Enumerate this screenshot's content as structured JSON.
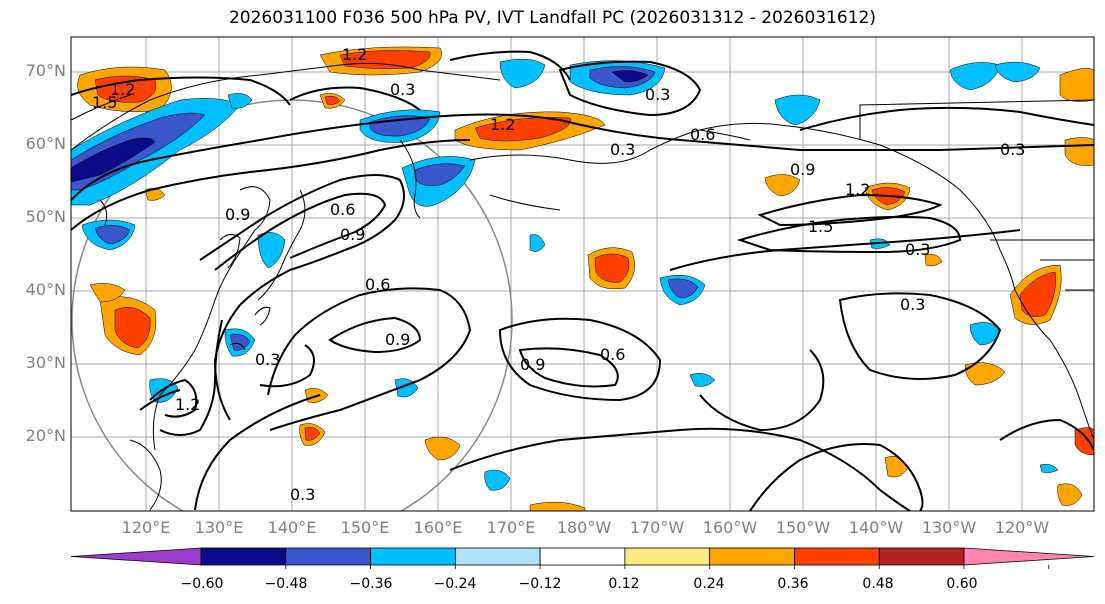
{
  "title": "2026031100 F036 500 hPa PV, IVT Landfall PC (2026031312 - 2026031612)",
  "lat_labels": [
    "70°N",
    "60°N",
    "50°N",
    "40°N",
    "30°N",
    "20°N"
  ],
  "lon_labels": [
    "120°E",
    "130°E",
    "140°E",
    "150°E",
    "160°E",
    "170°E",
    "180°W",
    "170°W",
    "160°W",
    "150°W",
    "140°W",
    "130°W",
    "120°W"
  ],
  "contour_labels": [
    "1.2",
    "0.3",
    "1.5",
    "0.6",
    "0.9"
  ],
  "colorbar": {
    "colors": [
      "#9b3ccc",
      "#0b0b8a",
      "#3a58cc",
      "#00bfff",
      "#b0e0fa",
      "#ffffff",
      "#ffea80",
      "#ffa500",
      "#ff4000",
      "#b22222",
      "#ff85b0"
    ],
    "ticks": [
      "−0.60",
      "−0.48",
      "−0.36",
      "−0.24",
      "−0.12",
      "0.12",
      "0.24",
      "0.36",
      "0.48",
      "0.60"
    ]
  },
  "fill_colors": {
    "strong_negative": "#0b0b8a",
    "moderate_negative": "#3a58cc",
    "negative": "#00bfff",
    "weak_positive": "#ffea80",
    "positive": "#ffa500",
    "strong_positive": "#ff4000"
  }
}
